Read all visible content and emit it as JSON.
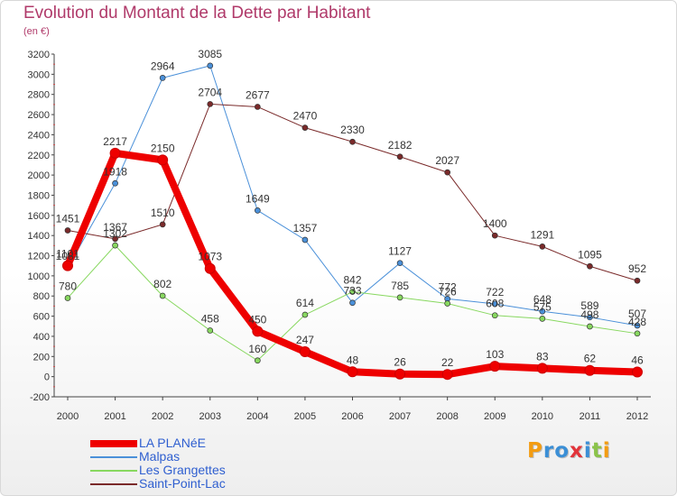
{
  "title": "Evolution du Montant de la Dette par Habitant",
  "subtitle": "(en €)",
  "logo": {
    "text": "Proxiti",
    "letters": [
      {
        "ch": "P",
        "color": "#f39c12"
      },
      {
        "ch": "r",
        "color": "#3b8fd6"
      },
      {
        "ch": "o",
        "color": "#3b8fd6"
      },
      {
        "ch": "x",
        "color": "#e2343a"
      },
      {
        "ch": "i",
        "color": "#3b8fd6"
      },
      {
        "ch": "t",
        "color": "#8bc34a"
      },
      {
        "ch": "i",
        "color": "#f39c12"
      }
    ]
  },
  "chart_data": {
    "type": "line",
    "title": "Evolution du Montant de la Dette par Habitant",
    "subtitle": "(en €)",
    "x": [
      "2000",
      "2001",
      "2002",
      "2003",
      "2004",
      "2005",
      "2006",
      "2007",
      "2008",
      "2009",
      "2010",
      "2011",
      "2012"
    ],
    "ylim": [
      -200,
      3200
    ],
    "yticks": [
      -200,
      0,
      200,
      400,
      600,
      800,
      1000,
      1200,
      1400,
      1600,
      1800,
      2000,
      2200,
      2400,
      2600,
      2800,
      3000,
      3200
    ],
    "grid": false,
    "legend_position": "bottom-left",
    "series": [
      {
        "name": "LA PLANéE",
        "color": "#ee0000",
        "width": 8,
        "values": [
          1101,
          2217,
          2150,
          1073,
          450,
          247,
          48,
          26,
          22,
          103,
          83,
          62,
          46
        ],
        "labels": [
          "1101",
          "2217",
          "2150",
          "1073",
          "450",
          "247",
          "48",
          "26",
          "22",
          "103",
          "83",
          "62",
          "46"
        ]
      },
      {
        "name": "Malpas",
        "color": "#4a90d9",
        "width": 1,
        "values": [
          1081,
          1918,
          2964,
          3085,
          1649,
          1357,
          733,
          1127,
          772,
          722,
          648,
          589,
          507
        ],
        "labels": [
          "1081",
          "1918",
          "2964",
          "3085",
          "1649",
          "1357",
          "733",
          "1127",
          "772",
          "722",
          "648",
          "589",
          "507"
        ]
      },
      {
        "name": "Les Grangettes",
        "color": "#88d860",
        "width": 1,
        "values": [
          780,
          1302,
          802,
          458,
          160,
          614,
          842,
          785,
          726,
          608,
          575,
          498,
          428
        ],
        "labels": [
          "780",
          "1302",
          "802",
          "458",
          "160",
          "614",
          "842",
          "785",
          "726",
          "608",
          "575",
          "498",
          "428"
        ]
      },
      {
        "name": "Saint-Point-Lac",
        "color": "#7a2a2a",
        "width": 1,
        "values": [
          1451,
          1367,
          1510,
          2704,
          2677,
          2470,
          2330,
          2182,
          2027,
          1400,
          1291,
          1095,
          952
        ],
        "labels": [
          "1451",
          "1367",
          "1510",
          "2704",
          "2677",
          "2470",
          "2330",
          "2182",
          "2027",
          "1400",
          "1291",
          "1095",
          "952"
        ]
      }
    ]
  }
}
